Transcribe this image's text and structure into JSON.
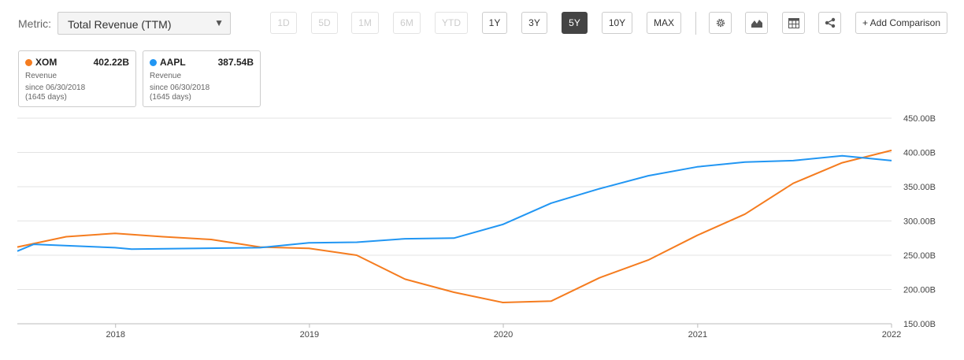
{
  "toolbar": {
    "metric_label": "Metric:",
    "metric_value": "Total Revenue (TTM)",
    "ranges": [
      {
        "label": "1D",
        "state": "disabled"
      },
      {
        "label": "5D",
        "state": "disabled"
      },
      {
        "label": "1M",
        "state": "disabled"
      },
      {
        "label": "6M",
        "state": "disabled"
      },
      {
        "label": "YTD",
        "state": "disabled"
      },
      {
        "label": "1Y",
        "state": "enabled"
      },
      {
        "label": "3Y",
        "state": "enabled"
      },
      {
        "label": "5Y",
        "state": "active"
      },
      {
        "label": "10Y",
        "state": "enabled"
      },
      {
        "label": "MAX",
        "state": "enabled"
      }
    ],
    "icons": [
      "gear-icon",
      "chart-type-icon",
      "table-icon",
      "share-icon"
    ],
    "add_comparison": "+ Add Comparison"
  },
  "legend": [
    {
      "ticker": "XOM",
      "value": "402.22B",
      "metric": "Revenue",
      "since": "since 06/30/2018",
      "days": "(1645 days)",
      "color": "#f57c1f"
    },
    {
      "ticker": "AAPL",
      "value": "387.54B",
      "metric": "Revenue",
      "since": "since 06/30/2018",
      "days": "(1645 days)",
      "color": "#2196f3"
    }
  ],
  "chart_data": {
    "type": "line",
    "x_type": "date",
    "x_ticks": [
      "2018",
      "2019",
      "2020",
      "2021",
      "2022"
    ],
    "xlim": [
      "2017-06-30",
      "2022-01-01"
    ],
    "ylim": [
      150,
      450
    ],
    "y_ticks": [
      "150.00B",
      "200.00B",
      "250.00B",
      "300.00B",
      "350.00B",
      "400.00B",
      "450.00B"
    ],
    "grid": true,
    "y_axis_side": "right",
    "series": [
      {
        "name": "XOM",
        "color": "#f57c1f",
        "points": [
          [
            "2017-06-30",
            262
          ],
          [
            "2017-09-30",
            277
          ],
          [
            "2017-12-31",
            282
          ],
          [
            "2018-03-31",
            277
          ],
          [
            "2018-06-30",
            273
          ],
          [
            "2018-09-30",
            262
          ],
          [
            "2018-12-31",
            260
          ],
          [
            "2019-03-31",
            250
          ],
          [
            "2019-06-30",
            215
          ],
          [
            "2019-09-30",
            196
          ],
          [
            "2019-12-31",
            181
          ],
          [
            "2020-03-31",
            183
          ],
          [
            "2020-06-30",
            217
          ],
          [
            "2020-09-30",
            243
          ],
          [
            "2020-12-31",
            279
          ],
          [
            "2021-03-31",
            310
          ],
          [
            "2021-06-30",
            355
          ],
          [
            "2021-09-30",
            385
          ],
          [
            "2022-01-01",
            403
          ]
        ]
      },
      {
        "name": "AAPL",
        "color": "#2196f3",
        "points": [
          [
            "2017-06-30",
            256
          ],
          [
            "2017-07-31",
            266
          ],
          [
            "2017-12-31",
            261
          ],
          [
            "2018-01-31",
            259
          ],
          [
            "2018-09-30",
            261
          ],
          [
            "2018-12-31",
            268
          ],
          [
            "2019-03-31",
            269
          ],
          [
            "2019-06-30",
            274
          ],
          [
            "2019-09-30",
            275
          ],
          [
            "2019-12-31",
            295
          ],
          [
            "2020-03-31",
            326
          ],
          [
            "2020-06-30",
            347
          ],
          [
            "2020-09-30",
            366
          ],
          [
            "2020-12-31",
            379
          ],
          [
            "2021-03-31",
            386
          ],
          [
            "2021-06-30",
            388
          ],
          [
            "2021-09-30",
            395
          ],
          [
            "2022-01-01",
            388
          ]
        ]
      }
    ]
  }
}
